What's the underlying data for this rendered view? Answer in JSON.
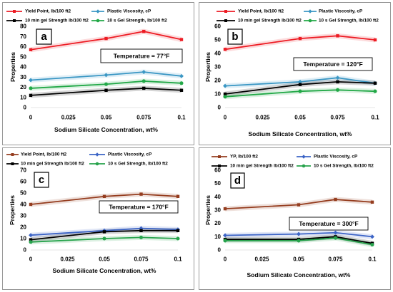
{
  "chart_data": [
    {
      "panel_label": "a",
      "type": "line",
      "annotation": "Temperature = 77°F",
      "xlabel": "Sodium Silicate Concentration, wt%",
      "ylabel": "Properties",
      "x": [
        0,
        0.05,
        0.075,
        0.1
      ],
      "xticks": [
        0,
        0.025,
        0.05,
        0.075,
        0.1
      ],
      "xlim": [
        0,
        0.1
      ],
      "yticks": [
        0,
        10,
        20,
        30,
        40,
        50,
        60,
        70,
        80
      ],
      "ylim": [
        0,
        80
      ],
      "grid": false,
      "legend_position": "top",
      "series": [
        {
          "name": "Yield Point, lb/100 ft2",
          "color": "#ed1c24",
          "marker": "square",
          "values": [
            57,
            68,
            75,
            67
          ]
        },
        {
          "name": "Plastic Viscosity, cP",
          "color": "#3b97c4",
          "marker": "diamond",
          "values": [
            27,
            32,
            35,
            31
          ]
        },
        {
          "name": "10 min gel Strength lb/100 ft2",
          "color": "#000000",
          "marker": "square",
          "values": [
            12,
            17,
            19,
            17
          ]
        },
        {
          "name": "10 s Gel Strength, lb/100 ft2",
          "color": "#22a847",
          "marker": "circle",
          "values": [
            19,
            23,
            26,
            24
          ]
        }
      ]
    },
    {
      "panel_label": "b",
      "type": "line",
      "annotation": "Temperature = 120°F",
      "xlabel": "Sodium Silicate Concentration, wt%",
      "ylabel": "Properties",
      "x": [
        0,
        0.05,
        0.075,
        0.1
      ],
      "xticks": [
        0,
        0.025,
        0.05,
        0.075,
        0.1
      ],
      "xlim": [
        0,
        0.1
      ],
      "yticks": [
        0,
        10,
        20,
        30,
        40,
        50,
        60
      ],
      "ylim": [
        0,
        60
      ],
      "grid": false,
      "legend_position": "top",
      "series": [
        {
          "name": "Yield Point, lb/100 ft2",
          "color": "#ed1c24",
          "marker": "square",
          "values": [
            43,
            51,
            53,
            50
          ]
        },
        {
          "name": "Plastic Viscosity, cP",
          "color": "#3b97c4",
          "marker": "diamond",
          "values": [
            16,
            19,
            22,
            18
          ]
        },
        {
          "name": "10 min gel Strength lb/100 ft2",
          "color": "#000000",
          "marker": "square",
          "values": [
            10,
            17,
            19,
            18
          ]
        },
        {
          "name": "10 s Gel Strength, lb/100 ft2",
          "color": "#22a847",
          "marker": "circle",
          "values": [
            8,
            12,
            13,
            12
          ]
        }
      ]
    },
    {
      "panel_label": "c",
      "type": "line",
      "annotation": "Temperature = 170°F",
      "xlabel": "Sodium Silicate Concentration, wt%",
      "ylabel": "Properties",
      "x": [
        0,
        0.05,
        0.075,
        0.1
      ],
      "xticks": [
        0,
        0.025,
        0.05,
        0.075,
        0.1
      ],
      "xlim": [
        0,
        0.1
      ],
      "yticks": [
        0,
        10,
        20,
        30,
        40,
        50,
        60,
        70
      ],
      "ylim": [
        0,
        70
      ],
      "grid": false,
      "legend_position": "top",
      "series": [
        {
          "name": "Yield Point, lb/100 ft2",
          "color": "#953d1f",
          "marker": "square",
          "values": [
            40,
            47,
            49,
            47
          ]
        },
        {
          "name": "Plastic Viscosity, cP",
          "color": "#3c64c6",
          "marker": "diamond",
          "values": [
            13,
            17,
            19,
            18
          ]
        },
        {
          "name": "10 min gel Strength lb/100 ft2",
          "color": "#000000",
          "marker": "square",
          "values": [
            9,
            16,
            17,
            17
          ]
        },
        {
          "name": "10 s Gel Strength, lb/100 ft2",
          "color": "#27a34c",
          "marker": "circle",
          "values": [
            7,
            10,
            11,
            10
          ]
        }
      ]
    },
    {
      "panel_label": "d",
      "type": "line",
      "annotation": "Temperature = 300°F",
      "xlabel": "Sodium Silicate Concentration, wt%",
      "ylabel": "Properties",
      "x": [
        0,
        0.05,
        0.075,
        0.1
      ],
      "xticks": [
        0,
        0.025,
        0.05,
        0.075,
        0.1
      ],
      "xlim": [
        0,
        0.1
      ],
      "yticks": [
        0,
        10,
        20,
        30,
        40,
        50,
        60
      ],
      "ylim": [
        0,
        60
      ],
      "grid": false,
      "legend_position": "top",
      "series": [
        {
          "name": "YP, lb/100 ft2",
          "color": "#953d1f",
          "marker": "square",
          "values": [
            31,
            34,
            38,
            36
          ]
        },
        {
          "name": "Plastic Viscosity, cP",
          "color": "#3c64c6",
          "marker": "diamond",
          "values": [
            11,
            12,
            13,
            10
          ]
        },
        {
          "name": "10 min gel Strength lb/100 ft2",
          "color": "#000000",
          "marker": "square",
          "values": [
            8,
            8,
            10,
            5
          ]
        },
        {
          "name": "10 s Gel Strength, lb/100 ft2",
          "color": "#27a34c",
          "marker": "circle",
          "values": [
            7,
            7,
            9,
            4
          ]
        }
      ]
    }
  ]
}
